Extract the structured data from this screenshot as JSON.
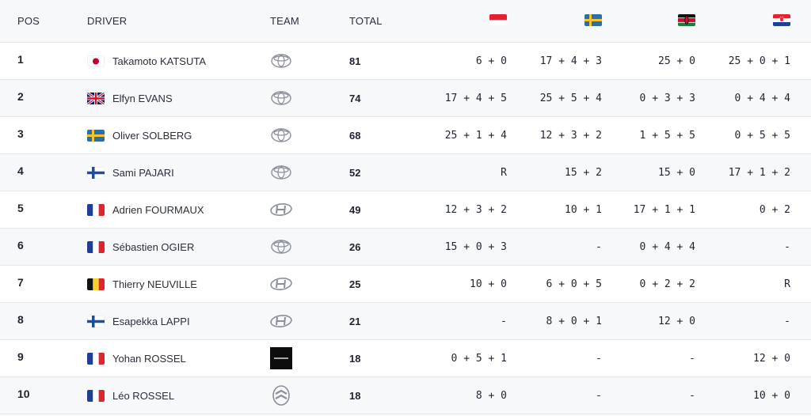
{
  "header": {
    "pos": "POS",
    "driver": "DRIVER",
    "team": "TEAM",
    "total": "TOTAL",
    "rounds": [
      "monaco-flag-icon",
      "sweden-flag-icon",
      "kenya-flag-icon",
      "croatia-flag-icon"
    ]
  },
  "rows": [
    {
      "pos": "1",
      "flag": "japan-flag-icon",
      "driver": "Takamoto KATSUTA",
      "team": "toyota-logo-icon",
      "total": "81",
      "results": [
        "6 + 0",
        "17 + 4 + 3",
        "25 + 0",
        "25 + 0 + 1"
      ]
    },
    {
      "pos": "2",
      "flag": "uk-flag-icon",
      "driver": "Elfyn EVANS",
      "team": "toyota-logo-icon",
      "total": "74",
      "results": [
        "17 + 4 + 5",
        "25 + 5 + 4",
        "0 + 3 + 3",
        "0 + 4 + 4"
      ]
    },
    {
      "pos": "3",
      "flag": "sweden-flag-icon",
      "driver": "Oliver SOLBERG",
      "team": "toyota-logo-icon",
      "total": "68",
      "results": [
        "25 + 1 + 4",
        "12 + 3 + 2",
        "1 + 5 + 5",
        "0 + 5 + 5"
      ]
    },
    {
      "pos": "4",
      "flag": "finland-flag-icon",
      "driver": "Sami PAJARI",
      "team": "toyota-logo-icon",
      "total": "52",
      "results": [
        "R",
        "15 + 2",
        "15 + 0",
        "17 + 1 + 2"
      ]
    },
    {
      "pos": "5",
      "flag": "france-flag-icon",
      "driver": "Adrien FOURMAUX",
      "team": "hyundai-logo-icon",
      "total": "49",
      "results": [
        "12 + 3 + 2",
        "10 + 1",
        "17 + 1 + 1",
        "0 + 2"
      ]
    },
    {
      "pos": "6",
      "flag": "france-flag-icon",
      "driver": "Sébastien OGIER",
      "team": "toyota-logo-icon",
      "total": "26",
      "results": [
        "15 + 0 + 3",
        "-",
        "0 + 4 + 4",
        "-"
      ]
    },
    {
      "pos": "7",
      "flag": "belgium-flag-icon",
      "driver": "Thierry NEUVILLE",
      "team": "hyundai-logo-icon",
      "total": "25",
      "results": [
        "10 + 0",
        "6 + 0 + 5",
        "0 + 2 + 2",
        "R"
      ]
    },
    {
      "pos": "8",
      "flag": "finland-flag-icon",
      "driver": "Esapekka LAPPI",
      "team": "hyundai-logo-icon",
      "total": "21",
      "results": [
        "-",
        "8 + 0 + 1",
        "12 + 0",
        "-"
      ]
    },
    {
      "pos": "9",
      "flag": "france-flag-icon",
      "driver": "Yohan ROSSEL",
      "team": "lancia-logo-icon",
      "total": "18",
      "results": [
        "0 + 5 + 1",
        "-",
        "-",
        "12 + 0"
      ]
    },
    {
      "pos": "10",
      "flag": "france-flag-icon",
      "driver": "Léo ROSSEL",
      "team": "citroen-logo-icon",
      "total": "18",
      "results": [
        "8 + 0",
        "-",
        "-",
        "10 + 0"
      ]
    }
  ],
  "colors": {
    "header_bg": "#f7f8fa",
    "row_alt_bg": "#f7f8fa",
    "divider": "#e6e8ec",
    "text": "#1f2430"
  }
}
